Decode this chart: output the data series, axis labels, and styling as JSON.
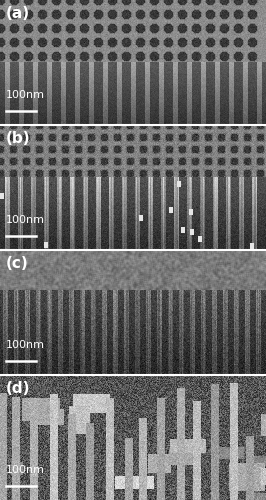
{
  "labels": [
    "(a)",
    "(b)",
    "(c)",
    "(d)"
  ],
  "scale_text": "100nm",
  "fig_width": 2.66,
  "fig_height": 5.0,
  "dpi": 100,
  "label_fontsize": 11,
  "scalebar_fontsize": 8
}
